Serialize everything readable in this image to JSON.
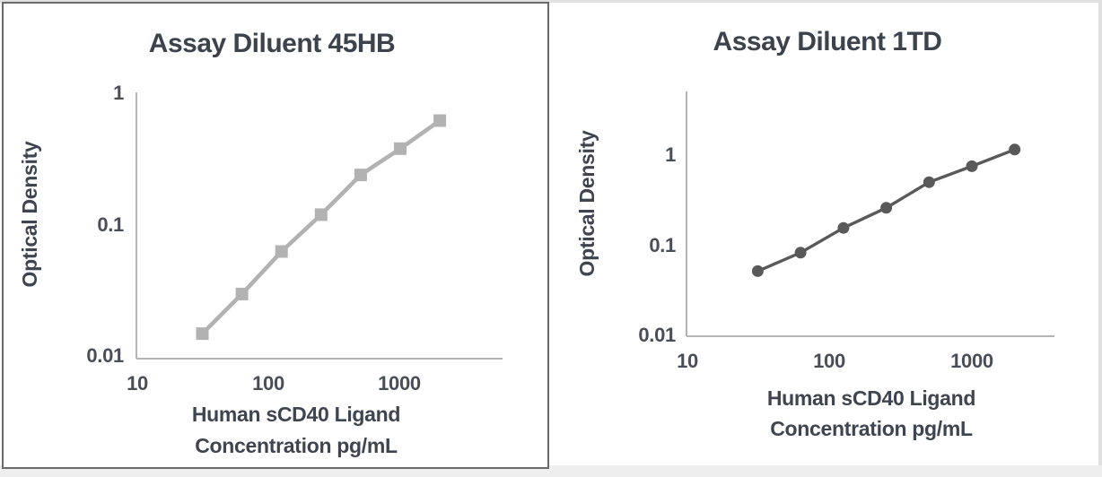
{
  "panels": [
    {
      "title": "Assay Diluent 45HB",
      "y_axis_label": "Optical Density",
      "x_axis_label_line1": "Human sCD40 Ligand",
      "x_axis_label_line2": "Concentration pg/mL",
      "y_ticks": [
        "1",
        "0.1",
        "0.01"
      ],
      "x_ticks": [
        "10",
        "100",
        "1000"
      ]
    },
    {
      "title": "Assay Diluent 1TD",
      "y_axis_label": "Optical Density",
      "x_axis_label_line1": "Human sCD40 Ligand",
      "x_axis_label_line2": "Concentration pg/mL",
      "y_ticks": [
        "1",
        "0.1",
        "0.01"
      ],
      "x_ticks": [
        "10",
        "100",
        "1000"
      ]
    }
  ],
  "chart_data": [
    {
      "type": "line",
      "title": "Assay Diluent 45HB",
      "xlabel": "Human sCD40 Ligand Concentration pg/mL",
      "ylabel": "Optical Density",
      "x_scale": "log",
      "y_scale": "log",
      "xlim": [
        10,
        6000
      ],
      "ylim": [
        0.01,
        1
      ],
      "x_tick_values": [
        10,
        100,
        1000
      ],
      "y_tick_values": [
        1,
        0.1,
        0.01
      ],
      "x": [
        31.25,
        62.5,
        125,
        250,
        500,
        1000,
        2000
      ],
      "y": [
        0.015,
        0.03,
        0.063,
        0.12,
        0.24,
        0.38,
        0.62
      ],
      "series_color": "#b2b2b2",
      "marker": "square",
      "grid": false,
      "legend": false
    },
    {
      "type": "line",
      "title": "Assay Diluent 1TD",
      "xlabel": "Human sCD40 Ligand Concentration pg/mL",
      "ylabel": "Optical Density",
      "x_scale": "log",
      "y_scale": "log",
      "xlim": [
        10,
        3800
      ],
      "ylim": [
        0.01,
        4.8
      ],
      "x_tick_values": [
        10,
        100,
        1000
      ],
      "y_tick_values": [
        1,
        0.1,
        0.01
      ],
      "x": [
        31.25,
        62.5,
        125,
        250,
        500,
        1000,
        2000
      ],
      "y": [
        0.05,
        0.08,
        0.15,
        0.25,
        0.48,
        0.72,
        1.1
      ],
      "series_color": "#595959",
      "marker": "circle",
      "grid": false,
      "legend": false
    }
  ],
  "colors": {
    "background": "#ffffff",
    "left_panel_border": "#6a6a6a",
    "page_edge": "#e0e0e0",
    "bottom_strip": "#eeeeee",
    "axis_line": "#b4b4b4",
    "title_text": "#3d434d",
    "tick_text": "#4a4e59",
    "series_left": "#b2b2b2",
    "series_right": "#595959"
  }
}
